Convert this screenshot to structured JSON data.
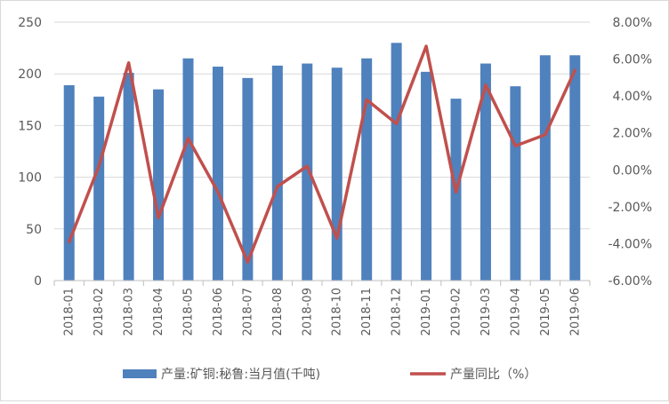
{
  "chart_data": {
    "type": "bar",
    "categories": [
      "2018-01",
      "2018-02",
      "2018-03",
      "2018-04",
      "2018-05",
      "2018-06",
      "2018-07",
      "2018-08",
      "2018-09",
      "2018-10",
      "2018-11",
      "2018-12",
      "2019-01",
      "2019-02",
      "2019-03",
      "2019-04",
      "2019-05",
      "2019-06"
    ],
    "series": [
      {
        "name": "产量:矿铜:秘鲁:当月值(千吨)",
        "type": "bar",
        "axis": "left",
        "color": "#4f81bd",
        "values": [
          189,
          178,
          201,
          185,
          215,
          207,
          196,
          208,
          210,
          206,
          215,
          230,
          202,
          176,
          210,
          188,
          218,
          218
        ]
      },
      {
        "name": "产量同比（%）",
        "type": "line",
        "axis": "right",
        "color": "#c0504d",
        "values": [
          -3.9,
          0.2,
          5.8,
          -2.6,
          1.7,
          -1.2,
          -5.0,
          -0.9,
          0.2,
          -3.7,
          3.8,
          2.5,
          6.7,
          -1.2,
          4.6,
          1.3,
          1.9,
          5.4
        ]
      }
    ],
    "y_left": {
      "min": 0,
      "max": 250,
      "ticks": [
        "0",
        "50",
        "100",
        "150",
        "200",
        "250"
      ]
    },
    "y_right": {
      "min": -6,
      "max": 8,
      "ticks": [
        "-6.00%",
        "-4.00%",
        "-2.00%",
        "0.00%",
        "2.00%",
        "4.00%",
        "6.00%",
        "8.00%"
      ]
    },
    "grid": true,
    "legend_position": "bottom",
    "title": "",
    "xlabel": "",
    "ylabel": ""
  }
}
